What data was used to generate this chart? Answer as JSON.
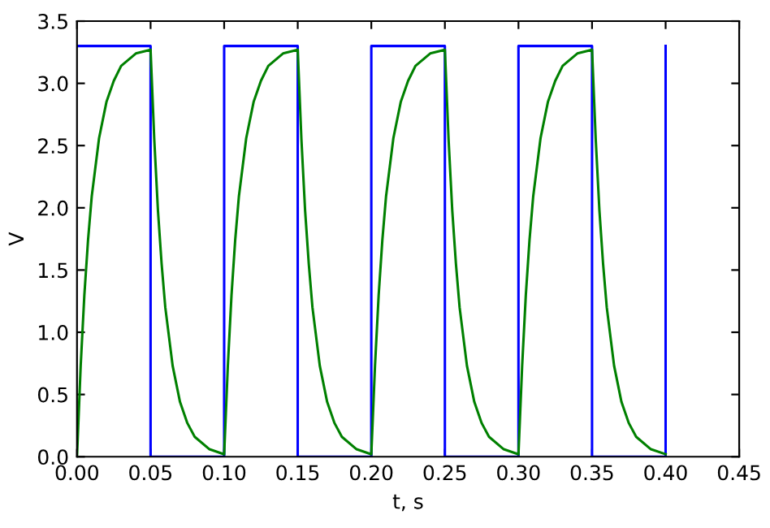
{
  "chart_data": {
    "type": "line",
    "xlabel": "t, s",
    "ylabel": "V",
    "xlim": [
      0,
      0.45
    ],
    "ylim": [
      0,
      3.5
    ],
    "xticks": [
      {
        "value": 0,
        "label": "0.00"
      },
      {
        "value": 0.05,
        "label": "0.05"
      },
      {
        "value": 0.1,
        "label": "0.10"
      },
      {
        "value": 0.15,
        "label": "0.15"
      },
      {
        "value": 0.2,
        "label": "0.20"
      },
      {
        "value": 0.25,
        "label": "0.25"
      },
      {
        "value": 0.3,
        "label": "0.30"
      },
      {
        "value": 0.35,
        "label": "0.35"
      },
      {
        "value": 0.4,
        "label": "0.40"
      },
      {
        "value": 0.45,
        "label": "0.45"
      }
    ],
    "yticks": [
      {
        "value": 0,
        "label": "0.0"
      },
      {
        "value": 0.5,
        "label": "0.5"
      },
      {
        "value": 1,
        "label": "1.0"
      },
      {
        "value": 1.5,
        "label": "1.5"
      },
      {
        "value": 2,
        "label": "2.0"
      },
      {
        "value": 2.5,
        "label": "2.5"
      },
      {
        "value": 3,
        "label": "3.0"
      },
      {
        "value": 3.5,
        "label": "3.5"
      }
    ],
    "grid": false,
    "legend": false,
    "series": [
      {
        "type": "step",
        "color": "#0000ff",
        "x": [
          0,
          0.05,
          0.1,
          0.15,
          0.2,
          0.25,
          0.3,
          0.35,
          0.4
        ],
        "values": [
          3.3,
          0,
          3.3,
          0,
          3.3,
          0,
          3.3,
          0,
          3.3
        ]
      },
      {
        "color": "#008000",
        "x": [
          0,
          0.0025,
          0.005,
          0.0075,
          0.01,
          0.015,
          0.02,
          0.025,
          0.03,
          0.04,
          0.05,
          0.0525,
          0.055,
          0.0575,
          0.06,
          0.065,
          0.07,
          0.075,
          0.08,
          0.09,
          0.1,
          0.1025,
          0.105,
          0.1075,
          0.11,
          0.115,
          0.12,
          0.125,
          0.13,
          0.14,
          0.15,
          0.1525,
          0.155,
          0.1575,
          0.16,
          0.165,
          0.17,
          0.175,
          0.18,
          0.19,
          0.2,
          0.2025,
          0.205,
          0.2075,
          0.21,
          0.215,
          0.22,
          0.225,
          0.23,
          0.24,
          0.25,
          0.2525,
          0.255,
          0.2575,
          0.26,
          0.265,
          0.27,
          0.275,
          0.28,
          0.29,
          0.3,
          0.3025,
          0.305,
          0.3075,
          0.31,
          0.315,
          0.32,
          0.325,
          0.33,
          0.34,
          0.35,
          0.3525,
          0.355,
          0.3575,
          0.36,
          0.365,
          0.37,
          0.375,
          0.38,
          0.39,
          0.4
        ],
        "values": [
          0,
          0.73,
          1.3,
          1.74,
          2.09,
          2.56,
          2.85,
          3.02,
          3.14,
          3.24,
          3.27,
          2.55,
          1.98,
          1.55,
          1.2,
          0.73,
          0.44,
          0.27,
          0.16,
          0.06,
          0.02,
          0.73,
          1.3,
          1.74,
          2.09,
          2.56,
          2.85,
          3.02,
          3.14,
          3.24,
          3.27,
          2.55,
          1.98,
          1.55,
          1.2,
          0.73,
          0.44,
          0.27,
          0.16,
          0.06,
          0.02,
          0.73,
          1.3,
          1.74,
          2.09,
          2.56,
          2.85,
          3.02,
          3.14,
          3.24,
          3.27,
          2.55,
          1.98,
          1.55,
          1.2,
          0.73,
          0.44,
          0.27,
          0.16,
          0.06,
          0.02,
          0.73,
          1.3,
          1.74,
          2.09,
          2.56,
          2.85,
          3.02,
          3.14,
          3.24,
          3.27,
          2.55,
          1.98,
          1.55,
          1.2,
          0.73,
          0.44,
          0.27,
          0.16,
          0.06,
          0.02
        ]
      }
    ]
  }
}
